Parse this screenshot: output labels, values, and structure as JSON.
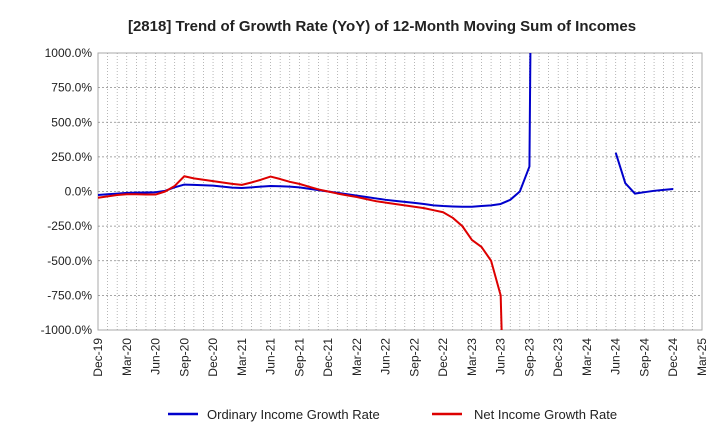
{
  "chart_data": {
    "type": "line",
    "title": "[2818]  Trend of Growth Rate (YoY) of 12-Month Moving Sum of Incomes",
    "xlabel": "",
    "ylabel": "",
    "ylim": [
      -1000,
      1000
    ],
    "yticks": [
      1000,
      750,
      500,
      250,
      0,
      -250,
      -500,
      -750,
      -1000
    ],
    "ytick_labels": [
      "1000.0%",
      "750.0%",
      "500.0%",
      "250.0%",
      "0.0%",
      "-250.0%",
      "-500.0%",
      "-750.0%",
      "-1000.0%"
    ],
    "x_ticks": [
      "Dec-19",
      "Mar-20",
      "Jun-20",
      "Sep-20",
      "Dec-20",
      "Mar-21",
      "Jun-21",
      "Sep-21",
      "Dec-21",
      "Mar-22",
      "Jun-22",
      "Sep-22",
      "Dec-22",
      "Mar-23",
      "Jun-23",
      "Sep-23",
      "Dec-23",
      "Mar-24",
      "Jun-24",
      "Sep-24",
      "Dec-24",
      "Mar-25"
    ],
    "grid": true,
    "legend_position": "bottom",
    "series": [
      {
        "name": "Ordinary Income Growth Rate",
        "color": "#0000cc",
        "points": [
          [
            "Dec-19",
            -25
          ],
          [
            "Jan-20",
            -20
          ],
          [
            "Feb-20",
            -15
          ],
          [
            "Mar-20",
            -10
          ],
          [
            "Apr-20",
            -8
          ],
          [
            "May-20",
            -7
          ],
          [
            "Jun-20",
            -5
          ],
          [
            "Jul-20",
            5
          ],
          [
            "Aug-20",
            30
          ],
          [
            "Sep-20",
            50
          ],
          [
            "Oct-20",
            48
          ],
          [
            "Nov-20",
            45
          ],
          [
            "Dec-20",
            42
          ],
          [
            "Jan-21",
            35
          ],
          [
            "Feb-21",
            28
          ],
          [
            "Mar-21",
            25
          ],
          [
            "Apr-21",
            30
          ],
          [
            "May-21",
            35
          ],
          [
            "Jun-21",
            40
          ],
          [
            "Jul-21",
            38
          ],
          [
            "Aug-21",
            35
          ],
          [
            "Sep-21",
            30
          ],
          [
            "Oct-21",
            20
          ],
          [
            "Nov-21",
            10
          ],
          [
            "Dec-21",
            0
          ],
          [
            "Jan-22",
            -10
          ],
          [
            "Feb-22",
            -20
          ],
          [
            "Mar-22",
            -30
          ],
          [
            "Apr-22",
            -40
          ],
          [
            "May-22",
            -50
          ],
          [
            "Jun-22",
            -60
          ],
          [
            "Jul-22",
            -68
          ],
          [
            "Aug-22",
            -75
          ],
          [
            "Sep-22",
            -82
          ],
          [
            "Oct-22",
            -90
          ],
          [
            "Nov-22",
            -100
          ],
          [
            "Dec-22",
            -105
          ],
          [
            "Jan-23",
            -108
          ],
          [
            "Feb-23",
            -110
          ],
          [
            "Mar-23",
            -110
          ],
          [
            "Apr-23",
            -105
          ],
          [
            "May-23",
            -100
          ],
          [
            "Jun-23",
            -90
          ],
          [
            "Jul-23",
            -60
          ],
          [
            "Aug-23",
            0
          ],
          [
            "Sep-23",
            180
          ],
          [
            "Sep-23+",
            1000
          ],
          null,
          [
            "Jun-24",
            280
          ],
          [
            "Jul-24",
            60
          ],
          [
            "Aug-24",
            -15
          ],
          [
            "Sep-24",
            -5
          ],
          [
            "Oct-24",
            5
          ],
          [
            "Nov-24",
            12
          ],
          [
            "Dec-24",
            18
          ]
        ]
      },
      {
        "name": "Net Income Growth Rate",
        "color": "#dd0000",
        "points": [
          [
            "Dec-19",
            -45
          ],
          [
            "Jan-20",
            -35
          ],
          [
            "Feb-20",
            -25
          ],
          [
            "Mar-20",
            -20
          ],
          [
            "Apr-20",
            -20
          ],
          [
            "May-20",
            -22
          ],
          [
            "Jun-20",
            -22
          ],
          [
            "Jul-20",
            0
          ],
          [
            "Aug-20",
            40
          ],
          [
            "Sep-20",
            110
          ],
          [
            "Oct-20",
            95
          ],
          [
            "Nov-20",
            85
          ],
          [
            "Dec-20",
            75
          ],
          [
            "Jan-21",
            65
          ],
          [
            "Feb-21",
            55
          ],
          [
            "Mar-21",
            48
          ],
          [
            "Apr-21",
            65
          ],
          [
            "May-21",
            85
          ],
          [
            "Jun-21",
            108
          ],
          [
            "Jul-21",
            90
          ],
          [
            "Aug-21",
            70
          ],
          [
            "Sep-21",
            55
          ],
          [
            "Oct-21",
            35
          ],
          [
            "Nov-21",
            15
          ],
          [
            "Dec-21",
            0
          ],
          [
            "Jan-22",
            -15
          ],
          [
            "Feb-22",
            -28
          ],
          [
            "Mar-22",
            -40
          ],
          [
            "Apr-22",
            -55
          ],
          [
            "May-22",
            -70
          ],
          [
            "Jun-22",
            -80
          ],
          [
            "Jul-22",
            -90
          ],
          [
            "Aug-22",
            -100
          ],
          [
            "Sep-22",
            -110
          ],
          [
            "Oct-22",
            -120
          ],
          [
            "Nov-22",
            -135
          ],
          [
            "Dec-22",
            -150
          ],
          [
            "Jan-23",
            -190
          ],
          [
            "Feb-23",
            -250
          ],
          [
            "Mar-23",
            -350
          ],
          [
            "Apr-23",
            -400
          ],
          [
            "May-23",
            -500
          ],
          [
            "Jun-23",
            -750
          ],
          [
            "Jun-23+",
            -1000
          ]
        ]
      }
    ]
  }
}
